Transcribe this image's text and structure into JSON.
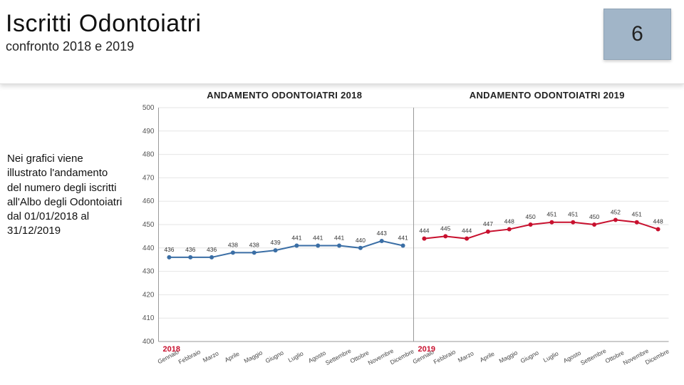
{
  "header": {
    "title": "Iscritti Odontoiatri",
    "subtitle": "confronto 2018 e 2019",
    "page_number": "6"
  },
  "side_text": "Nei grafici viene illustrato l'andamento del numero degli iscritti all'Albo degli Odontoiatri dal 01/01/2018 al 31/12/2019",
  "chart": {
    "type": "line",
    "title_2018": "ANDAMENTO ODONTOIATRI 2018",
    "title_2019": "ANDAMENTO ODONTOIATRI 2019",
    "months": [
      "Gennaio",
      "Febbraio",
      "Marzo",
      "Aprile",
      "Maggio",
      "Giugno",
      "Luglio",
      "Agosto",
      "Settembre",
      "Ottobre",
      "Novembre",
      "Dicembre"
    ],
    "year_label_2018": "2018",
    "year_label_2019": "2019",
    "ylim": [
      400,
      500
    ],
    "ytick_step": 10,
    "yticks": [
      400,
      410,
      420,
      430,
      440,
      450,
      460,
      470,
      480,
      490,
      500
    ],
    "series_2018": {
      "values": [
        436,
        436,
        436,
        438,
        438,
        439,
        441,
        441,
        441,
        440,
        443,
        441
      ],
      "color": "#3a6ea5",
      "marker_color": "#3a6ea5",
      "marker_size": 3
    },
    "series_2019": {
      "values": [
        444,
        445,
        444,
        447,
        448,
        450,
        451,
        451,
        450,
        452,
        451,
        448
      ],
      "color": "#c8102e",
      "marker_color": "#c8102e",
      "marker_size": 3
    },
    "background_color": "#ffffff",
    "grid_color": "#e6e6e6",
    "axis_color": "#999999",
    "label_fontsize": 8.5,
    "title_fontsize": 13
  }
}
